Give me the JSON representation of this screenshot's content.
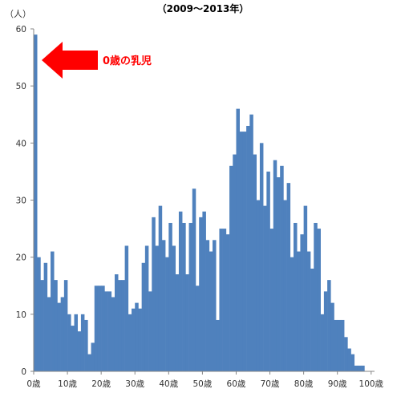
{
  "chart_data": {
    "type": "bar",
    "title": "（2009〜2013年）",
    "ylabel": "（人）",
    "xlabel": "",
    "ylim": [
      0,
      60
    ],
    "y_ticks": [
      "0",
      "10",
      "20",
      "30",
      "40",
      "50",
      "60"
    ],
    "x_ticks": [
      "0歳",
      "10歳",
      "20歳",
      "30歳",
      "40歳",
      "50歳",
      "60歳",
      "70歳",
      "80歳",
      "90歳",
      "100歳"
    ],
    "categories": [
      "0",
      "1",
      "2",
      "3",
      "4",
      "5",
      "6",
      "7",
      "8",
      "9",
      "10",
      "11",
      "12",
      "13",
      "14",
      "15",
      "16",
      "17",
      "18",
      "19",
      "20",
      "21",
      "22",
      "23",
      "24",
      "25",
      "26",
      "27",
      "28",
      "29",
      "30",
      "31",
      "32",
      "33",
      "34",
      "35",
      "36",
      "37",
      "38",
      "39",
      "40",
      "41",
      "42",
      "43",
      "44",
      "45",
      "46",
      "47",
      "48",
      "49",
      "50",
      "51",
      "52",
      "53",
      "54",
      "55",
      "56",
      "57",
      "58",
      "59",
      "60",
      "61",
      "62",
      "63",
      "64",
      "65",
      "66",
      "67",
      "68",
      "69",
      "70",
      "71",
      "72",
      "73",
      "74",
      "75",
      "76",
      "77",
      "78",
      "79",
      "80",
      "81",
      "82",
      "83",
      "84",
      "85",
      "86",
      "87",
      "88",
      "89",
      "90",
      "91",
      "92",
      "93",
      "94",
      "95",
      "96",
      "97",
      "98",
      "99",
      "100"
    ],
    "values": [
      59,
      20,
      16,
      19,
      13,
      21,
      16,
      12,
      13,
      16,
      10,
      8,
      10,
      7,
      10,
      9,
      3,
      5,
      15,
      15,
      15,
      14,
      14,
      13,
      17,
      16,
      16,
      22,
      10,
      11,
      12,
      11,
      19,
      22,
      14,
      27,
      22,
      29,
      23,
      20,
      26,
      22,
      17,
      28,
      26,
      17,
      26,
      32,
      15,
      27,
      28,
      23,
      21,
      23,
      9,
      25,
      25,
      24,
      36,
      38,
      46,
      42,
      42,
      43,
      45,
      38,
      30,
      40,
      29,
      35,
      25,
      37,
      34,
      36,
      30,
      33,
      20,
      26,
      21,
      24,
      29,
      21,
      18,
      26,
      25,
      10,
      14,
      16,
      12,
      9,
      9,
      9,
      6,
      4,
      3,
      1,
      1,
      1,
      0,
      0,
      0
    ],
    "color": "#4f81bd",
    "annotation": {
      "text": "0歳の乳児",
      "color": "#ff0000"
    }
  }
}
